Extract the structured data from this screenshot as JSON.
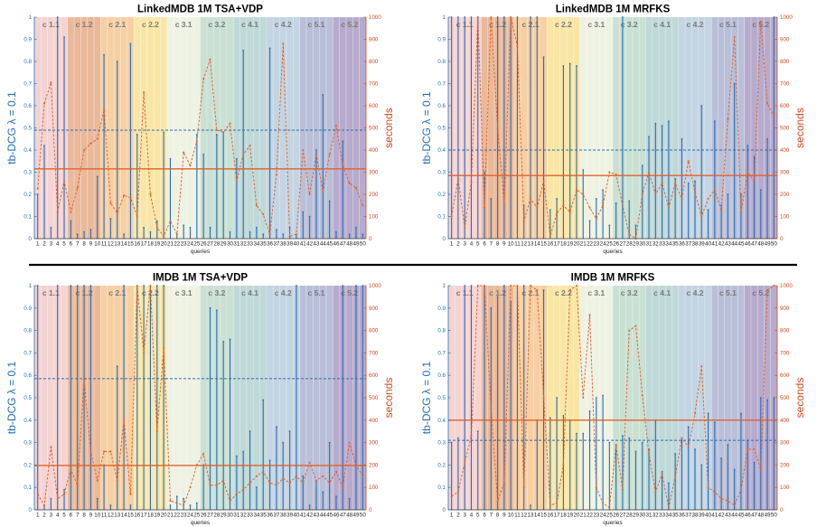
{
  "colors": {
    "stem": "#2b6cb0",
    "curve": "#e0622b",
    "left_axis": "#1f6fb8",
    "right_axis": "#d24a1c",
    "band_colors": [
      "#f4d3d3",
      "#e9b99a",
      "#f6cfa3",
      "#f9e6a6",
      "#eef2e3",
      "#c9e0d3",
      "#bfd8d8",
      "#c3d4e2",
      "#b9bfd8",
      "#b7abcd"
    ]
  },
  "labels": {
    "ylabel_left": "tb-DCG  λ = 0.1",
    "ylabel_right": "seconds",
    "xlabel": "queries"
  },
  "chart_data": [
    {
      "type": "line",
      "title": "LinkedMDB 1M TSA+VDP",
      "xlabel": "queries",
      "ylabel": "tb-DCG λ = 0.1",
      "y2label": "seconds",
      "x": [
        1,
        2,
        3,
        4,
        5,
        6,
        7,
        8,
        9,
        10,
        11,
        12,
        13,
        14,
        15,
        16,
        17,
        18,
        19,
        20,
        21,
        22,
        23,
        24,
        25,
        26,
        27,
        28,
        29,
        30,
        31,
        32,
        33,
        34,
        35,
        36,
        37,
        38,
        39,
        40,
        41,
        42,
        43,
        44,
        45,
        46,
        47,
        48,
        49,
        50
      ],
      "ylim": [
        0,
        1
      ],
      "y2lim": [
        0,
        1000
      ],
      "yticks": [
        "0",
        "0.1",
        "0.2",
        "0.3",
        "0.4",
        "0.5",
        "0.6",
        "0.7",
        "0.8",
        "0.9",
        "1"
      ],
      "y2ticks": [
        "0",
        "100",
        "200",
        "300",
        "400",
        "500",
        "600",
        "700",
        "800",
        "900",
        "1000"
      ],
      "categories": [
        "c 1.1",
        "c 1.2",
        "c 2.1",
        "c 2.2",
        "c 3.1",
        "c 3.2",
        "c 4.1",
        "c 4.2",
        "c 5.1",
        "c 5.2"
      ],
      "series": [
        {
          "kind": "stem",
          "axis": "left",
          "values": [
            0.2,
            0.42,
            0.05,
            1.0,
            0.91,
            0.08,
            0.02,
            0.03,
            0.04,
            0.28,
            0.83,
            0.09,
            0.8,
            0.02,
            0.88,
            0.47,
            0.05,
            0.03,
            0.08,
            0.48,
            0.36,
            0.02,
            0.06,
            0.05,
            0.47,
            0.38,
            0.05,
            0.47,
            0.48,
            0.03,
            0.36,
            0.85,
            0.03,
            0.05,
            0.02,
            0.86,
            0.04,
            0.02,
            0.05,
            0.02,
            0.12,
            0.1,
            0.4,
            0.65,
            0.17,
            0.03,
            0.44,
            0.02,
            0.05,
            0.02
          ]
        },
        {
          "kind": "curve",
          "axis": "right",
          "values": [
            225,
            610,
            705,
            120,
            260,
            120,
            230,
            400,
            430,
            450,
            580,
            160,
            115,
            195,
            185,
            100,
            660,
            200,
            50,
            10,
            80,
            20,
            390,
            330,
            440,
            720,
            810,
            490,
            480,
            520,
            260,
            380,
            420,
            150,
            110,
            20,
            290,
            880,
            10,
            20,
            400,
            200,
            380,
            210,
            380,
            510,
            330,
            250,
            230,
            150
          ]
        },
        {
          "kind": "hline",
          "axis": "left",
          "style": "dashed",
          "value": 0.49
        },
        {
          "kind": "hline",
          "axis": "right",
          "style": "solid",
          "value": 315
        }
      ]
    },
    {
      "type": "line",
      "title": "LinkedMDB 1M MRFKS",
      "xlabel": "queries",
      "ylabel": "tb-DCG λ = 0.1",
      "y2label": "seconds",
      "x": [
        1,
        2,
        3,
        4,
        5,
        6,
        7,
        8,
        9,
        10,
        11,
        12,
        13,
        14,
        15,
        16,
        17,
        18,
        19,
        20,
        21,
        22,
        23,
        24,
        25,
        26,
        27,
        28,
        29,
        30,
        31,
        32,
        33,
        34,
        35,
        36,
        37,
        38,
        39,
        40,
        41,
        42,
        43,
        44,
        45,
        46,
        47,
        48,
        49,
        50
      ],
      "ylim": [
        0,
        1
      ],
      "y2lim": [
        0,
        1000
      ],
      "yticks": [
        "0",
        "0.1",
        "0.2",
        "0.3",
        "0.4",
        "0.5",
        "0.6",
        "0.7",
        "0.8",
        "0.9",
        "1"
      ],
      "y2ticks": [
        "0",
        "100",
        "200",
        "300",
        "400",
        "500",
        "600",
        "700",
        "800",
        "900",
        "1000"
      ],
      "categories": [
        "c 1.1",
        "c 1.2",
        "c 2.1",
        "c 2.2",
        "c 3.1",
        "c 3.2",
        "c 4.1",
        "c 4.2",
        "c 5.1",
        "c 5.2"
      ],
      "series": [
        {
          "kind": "stem",
          "axis": "left",
          "values": [
            1.0,
            1.0,
            1.0,
            1.0,
            1.0,
            0.3,
            0.18,
            1.0,
            1.0,
            1.0,
            1.0,
            0.15,
            1.0,
            1.0,
            0.82,
            0.13,
            0.18,
            0.78,
            0.79,
            0.78,
            0.31,
            0.08,
            0.18,
            0.22,
            0.06,
            0.16,
            1.0,
            0.17,
            0.06,
            0.33,
            0.46,
            0.52,
            0.51,
            0.53,
            0.27,
            0.45,
            0.25,
            0.26,
            0.6,
            0.13,
            0.53,
            0.15,
            0.2,
            0.7,
            0.2,
            0.42,
            0.37,
            0.22,
            0.45,
            1.0
          ]
        },
        {
          "kind": "curve",
          "axis": "right",
          "values": [
            100,
            270,
            50,
            255,
            1000,
            140,
            1000,
            500,
            160,
            1000,
            870,
            80,
            180,
            140,
            260,
            10,
            115,
            150,
            120,
            220,
            200,
            140,
            90,
            150,
            300,
            290,
            150,
            20,
            0,
            200,
            300,
            200,
            250,
            140,
            250,
            180,
            350,
            210,
            100,
            180,
            220,
            130,
            540,
            910,
            120,
            300,
            260,
            980,
            610,
            550
          ]
        },
        {
          "kind": "hline",
          "axis": "left",
          "style": "dashed",
          "value": 0.4
        },
        {
          "kind": "hline",
          "axis": "right",
          "style": "solid",
          "value": 285
        }
      ]
    },
    {
      "type": "line",
      "title": "IMDB 1M TSA+VDP",
      "xlabel": "queries",
      "ylabel": "tb-DCG λ = 0.1",
      "y2label": "seconds",
      "x": [
        1,
        2,
        3,
        4,
        5,
        6,
        7,
        8,
        9,
        10,
        11,
        12,
        13,
        14,
        15,
        16,
        17,
        18,
        19,
        20,
        21,
        22,
        23,
        24,
        25,
        26,
        27,
        28,
        29,
        30,
        31,
        32,
        33,
        34,
        35,
        36,
        37,
        38,
        39,
        40,
        41,
        42,
        43,
        44,
        45,
        46,
        47,
        48,
        49,
        50
      ],
      "ylim": [
        0,
        1
      ],
      "y2lim": [
        0,
        1000
      ],
      "yticks": [
        "0",
        "0.1",
        "0.2",
        "0.3",
        "0.4",
        "0.5",
        "0.6",
        "0.7",
        "0.8",
        "0.9",
        "1"
      ],
      "y2ticks": [
        "0",
        "100",
        "200",
        "300",
        "400",
        "500",
        "600",
        "700",
        "800",
        "900",
        "1000"
      ],
      "categories": [
        "c 1.1",
        "c 1.2",
        "c 2.1",
        "c 2.2",
        "c 3.1",
        "c 3.2",
        "c 4.1",
        "c 4.2",
        "c 5.1",
        "c 5.2"
      ],
      "series": [
        {
          "kind": "stem",
          "axis": "left",
          "values": [
            1.0,
            0.02,
            0.05,
            1.0,
            0.09,
            1.0,
            1.0,
            1.0,
            1.0,
            0.05,
            0.2,
            0.02,
            0.64,
            1.0,
            0.02,
            1.0,
            1.0,
            1.0,
            1.0,
            1.0,
            0.02,
            0.06,
            0.05,
            0.02,
            0.03,
            0.2,
            0.9,
            0.89,
            0.75,
            0.76,
            0.24,
            0.26,
            0.35,
            0.1,
            0.49,
            0.22,
            0.37,
            0.3,
            0.35,
            1.0,
            0.15,
            0.02,
            0.13,
            0.08,
            0.3,
            0.06,
            1.0,
            0.05,
            1.0,
            1.0
          ]
        },
        {
          "kind": "curve",
          "axis": "right",
          "values": [
            70,
            20,
            280,
            50,
            70,
            180,
            110,
            580,
            260,
            130,
            260,
            260,
            130,
            400,
            70,
            1000,
            700,
            1000,
            350,
            720,
            40,
            30,
            20,
            100,
            200,
            250,
            110,
            110,
            130,
            40,
            70,
            90,
            120,
            150,
            170,
            120,
            110,
            140,
            120,
            150,
            120,
            210,
            130,
            150,
            120,
            170,
            100,
            300,
            200,
            150
          ]
        },
        {
          "kind": "hline",
          "axis": "left",
          "style": "dashed",
          "value": 0.585
        },
        {
          "kind": "hline",
          "axis": "right",
          "style": "solid",
          "value": 198
        }
      ]
    },
    {
      "type": "line",
      "title": "IMDB 1M MRFKS",
      "xlabel": "queries",
      "ylabel": "tb-DCG λ = 0.1",
      "y2label": "seconds",
      "x": [
        1,
        2,
        3,
        4,
        5,
        6,
        7,
        8,
        9,
        10,
        11,
        12,
        13,
        14,
        15,
        16,
        17,
        18,
        19,
        20,
        21,
        22,
        23,
        24,
        25,
        26,
        27,
        28,
        29,
        30,
        31,
        32,
        33,
        34,
        35,
        36,
        37,
        38,
        39,
        40,
        41,
        42,
        43,
        44,
        45,
        46,
        47,
        48,
        49,
        50
      ],
      "ylim": [
        0,
        1
      ],
      "y2lim": [
        0,
        1000
      ],
      "yticks": [
        "0",
        "0.1",
        "0.2",
        "0.3",
        "0.4",
        "0.5",
        "0.6",
        "0.7",
        "0.8",
        "0.9",
        "1"
      ],
      "y2ticks": [
        "0",
        "100",
        "200",
        "300",
        "400",
        "500",
        "600",
        "700",
        "800",
        "900",
        "1000"
      ],
      "categories": [
        "c 1.1",
        "c 1.2",
        "c 2.1",
        "c 2.2",
        "c 3.1",
        "c 3.2",
        "c 4.1",
        "c 4.2",
        "c 5.1",
        "c 5.2"
      ],
      "series": [
        {
          "kind": "stem",
          "axis": "left",
          "values": [
            0.3,
            0.32,
            1.0,
            1.0,
            0.35,
            1.0,
            0.9,
            0.95,
            1.0,
            0.93,
            1.0,
            1.0,
            0.02,
            0.4,
            0.98,
            0.41,
            0.5,
            0.42,
            0.4,
            0.34,
            0.34,
            0.44,
            0.5,
            0.51,
            0.3,
            0.29,
            0.33,
            0.32,
            0.26,
            0.3,
            0.27,
            0.4,
            0.17,
            0.12,
            0.25,
            0.32,
            0.37,
            0.27,
            0.2,
            0.43,
            0.39,
            0.23,
            0.29,
            0.18,
            0.43,
            0.31,
            0.21,
            0.5,
            0.49,
            0.5
          ]
        },
        {
          "kind": "curve",
          "axis": "right",
          "values": [
            60,
            80,
            210,
            330,
            1000,
            1000,
            450,
            40,
            120,
            1000,
            1000,
            100,
            1000,
            980,
            500,
            20,
            30,
            200,
            980,
            1000,
            500,
            870,
            100,
            30,
            10,
            290,
            90,
            800,
            820,
            510,
            250,
            80,
            160,
            10,
            150,
            320,
            280,
            430,
            640,
            100,
            80,
            50,
            40,
            20,
            90,
            270,
            270,
            180,
            980,
            1000
          ]
        },
        {
          "kind": "hline",
          "axis": "left",
          "style": "dashed",
          "value": 0.31
        },
        {
          "kind": "hline",
          "axis": "right",
          "style": "solid",
          "value": 400
        }
      ]
    }
  ]
}
